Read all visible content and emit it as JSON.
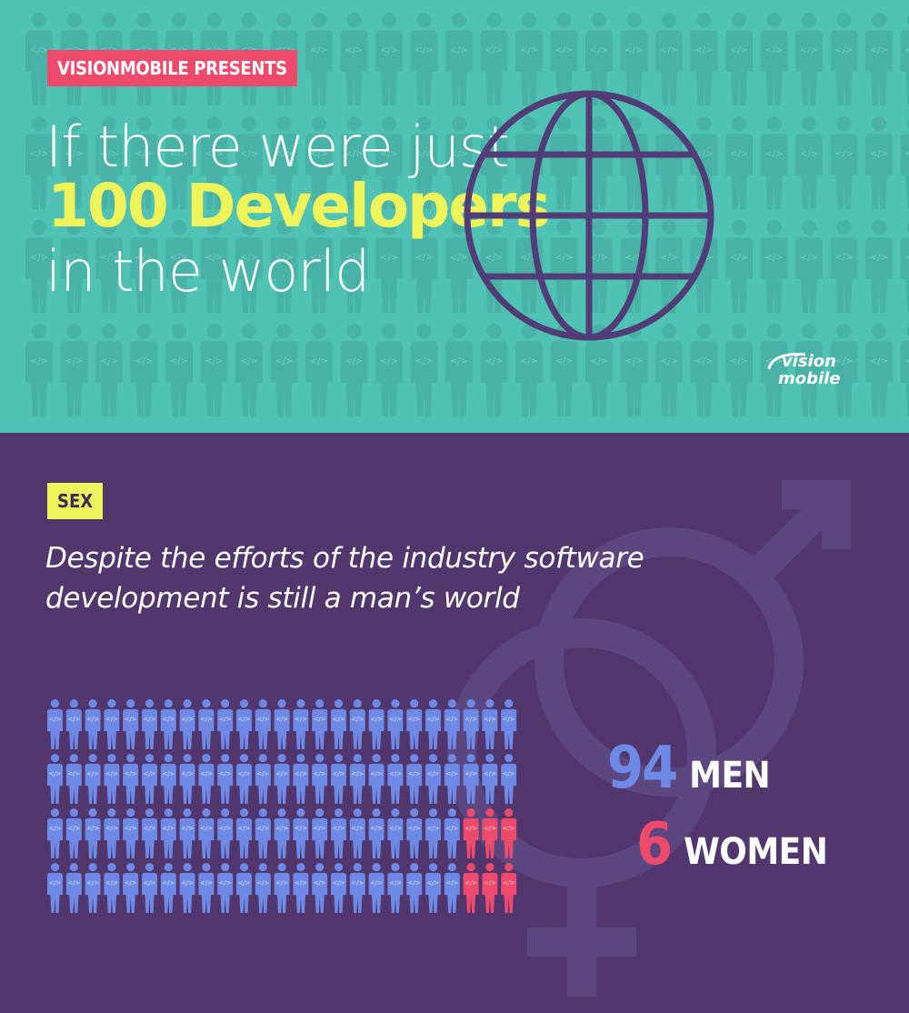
{
  "hero": {
    "tag": "VISIONMOBILE PRESENTS",
    "title_line1": "If there were just",
    "title_line2": "100 Developers",
    "title_line3": "in the world",
    "globe_icon": "globe-icon",
    "logo": {
      "line1": "vision",
      "line2": "mobile"
    },
    "bg_person_label": "</>"
  },
  "sex_section": {
    "tag": "SEX",
    "caption_line1": "Despite the efforts of the industry software",
    "caption_line2": "development is still a man’s world",
    "bg_icon": "gender-symbol-icon",
    "men": {
      "value": "94",
      "label": "MEN"
    },
    "women": {
      "value": "6",
      "label": "WOMEN"
    },
    "people_icon_label": "</>"
  },
  "chart_data": {
    "type": "pictogram",
    "total": 100,
    "series": [
      {
        "name": "MEN",
        "value": 94
      },
      {
        "name": "WOMEN",
        "value": 6
      }
    ]
  },
  "colors": {
    "teal_bg": "#4fc2b4",
    "purple_bg": "#51376e",
    "pink": "#ee4a6c",
    "yellow": "#eef35a",
    "men_blue": "#6f8ae6",
    "globe_purple": "#523d78"
  }
}
